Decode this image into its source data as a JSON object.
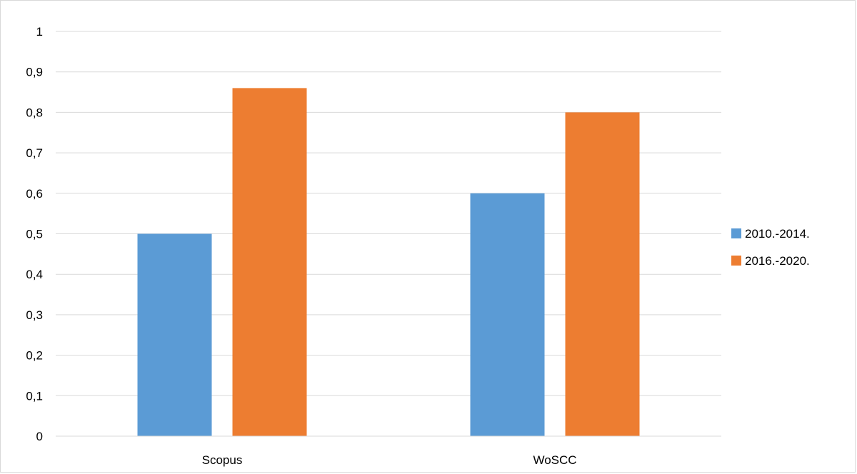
{
  "chart_data": {
    "type": "bar",
    "categories": [
      "Scopus",
      "WoSCC"
    ],
    "series": [
      {
        "name": "2010.-2014.",
        "color": "#5b9bd5",
        "values": [
          0.5,
          0.6
        ]
      },
      {
        "name": "2016.-2020.",
        "color": "#ed7d31",
        "values": [
          0.86,
          0.8
        ]
      }
    ],
    "title": "",
    "xlabel": "",
    "ylabel": "",
    "ylim": [
      0,
      1
    ],
    "yticks": [
      0,
      0.1,
      0.2,
      0.3,
      0.4,
      0.5,
      0.6,
      0.7,
      0.8,
      0.9,
      1
    ],
    "ytick_labels": [
      "0",
      "0,1",
      "0,2",
      "0,3",
      "0,4",
      "0,5",
      "0,6",
      "0,7",
      "0,8",
      "0,9",
      "1"
    ],
    "grid": true,
    "gridline_color": "#d9d9d9",
    "legend_position": "right"
  }
}
